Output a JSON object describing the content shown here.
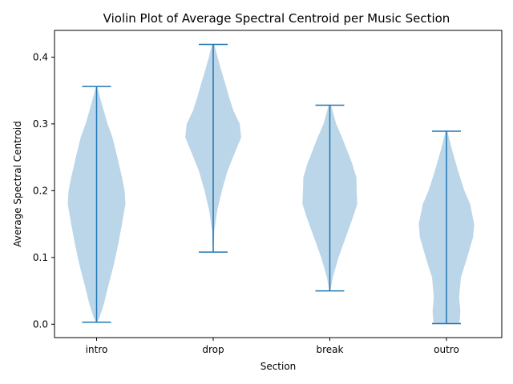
{
  "chart_data": {
    "type": "violin",
    "title": "Violin Plot of Average Spectral Centroid per Music Section",
    "xlabel": "Section",
    "ylabel": "Average Spectral Centroid",
    "categories": [
      "intro",
      "drop",
      "break",
      "outro"
    ],
    "ylim": [
      -0.02,
      0.44
    ],
    "yticks": [
      0.0,
      0.1,
      0.2,
      0.3,
      0.4
    ],
    "ytick_labels": [
      "0.0",
      "0.1",
      "0.2",
      "0.3",
      "0.4"
    ],
    "grid": false,
    "legend": "none",
    "colors": {
      "body": "#1f77b4",
      "body_opacity": 0.3,
      "lines": "#1f77b4"
    },
    "series": [
      {
        "category": "intro",
        "min": 0.003,
        "max": 0.356,
        "density_y": [
          0.003,
          0.01,
          0.03,
          0.06,
          0.09,
          0.12,
          0.15,
          0.18,
          0.2,
          0.22,
          0.25,
          0.28,
          0.3,
          0.33,
          0.356
        ],
        "density_w": [
          0.02,
          0.1,
          0.25,
          0.42,
          0.6,
          0.75,
          0.88,
          1.0,
          0.97,
          0.88,
          0.72,
          0.55,
          0.38,
          0.18,
          0.02
        ]
      },
      {
        "category": "drop",
        "min": 0.108,
        "max": 0.419,
        "density_y": [
          0.108,
          0.14,
          0.17,
          0.2,
          0.23,
          0.26,
          0.28,
          0.3,
          0.32,
          0.34,
          0.36,
          0.38,
          0.4,
          0.419
        ],
        "density_w": [
          0.01,
          0.04,
          0.14,
          0.3,
          0.5,
          0.78,
          0.97,
          0.92,
          0.7,
          0.55,
          0.42,
          0.28,
          0.15,
          0.04
        ]
      },
      {
        "category": "break",
        "min": 0.05,
        "max": 0.328,
        "density_y": [
          0.05,
          0.07,
          0.1,
          0.13,
          0.16,
          0.18,
          0.2,
          0.22,
          0.24,
          0.26,
          0.28,
          0.3,
          0.328
        ],
        "density_w": [
          0.02,
          0.1,
          0.3,
          0.55,
          0.8,
          0.95,
          0.93,
          0.92,
          0.78,
          0.6,
          0.42,
          0.22,
          0.04
        ]
      },
      {
        "category": "outro",
        "min": 0.001,
        "max": 0.289,
        "density_y": [
          0.001,
          0.02,
          0.04,
          0.07,
          0.1,
          0.13,
          0.15,
          0.18,
          0.2,
          0.23,
          0.26,
          0.289
        ],
        "density_w": [
          0.45,
          0.48,
          0.44,
          0.5,
          0.72,
          0.92,
          0.96,
          0.82,
          0.62,
          0.4,
          0.2,
          0.03
        ]
      }
    ]
  }
}
